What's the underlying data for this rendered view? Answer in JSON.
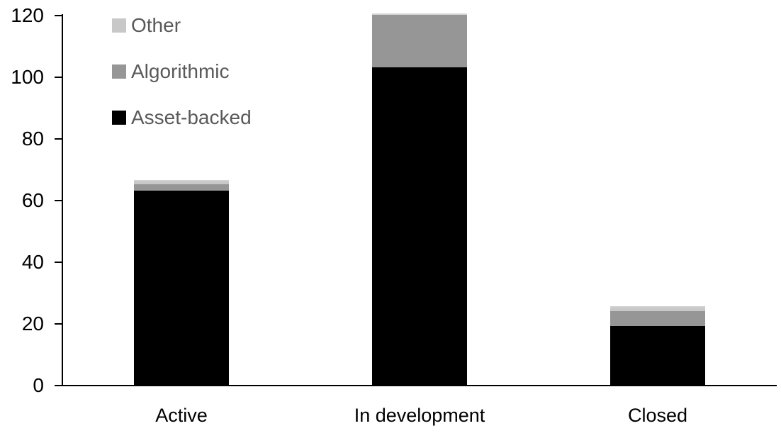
{
  "chart_data": {
    "type": "bar",
    "stacked": true,
    "title": "",
    "xlabel": "",
    "ylabel": "",
    "categories": [
      "Active",
      "In development",
      "Closed"
    ],
    "series": [
      {
        "name": "Asset-backed",
        "color": "#000000",
        "values": [
          63,
          103,
          19
        ]
      },
      {
        "name": "Algorithmic",
        "color": "#969696",
        "values": [
          2,
          17,
          5
        ]
      },
      {
        "name": "Other",
        "color": "#c8c8c8",
        "values": [
          1,
          0,
          1
        ]
      }
    ],
    "totals": [
      66,
      120,
      25
    ],
    "ylim": [
      0,
      120
    ],
    "yticks": [
      0,
      20,
      40,
      60,
      80,
      100,
      120
    ],
    "grid": false,
    "legend_position": "top-left",
    "legend_order_top_to_bottom": [
      "Other",
      "Algorithmic",
      "Asset-backed"
    ]
  },
  "legend": {
    "items": [
      {
        "label": "Other",
        "color": "#c8c8c8"
      },
      {
        "label": "Algorithmic",
        "color": "#969696"
      },
      {
        "label": "Asset-backed",
        "color": "#000000"
      }
    ]
  },
  "colors": {
    "background": "#ffffff",
    "axis": "#000000",
    "axis_text": "#000000",
    "legend_text": "#595959",
    "bar_top_edge": "#d2d2d2"
  }
}
